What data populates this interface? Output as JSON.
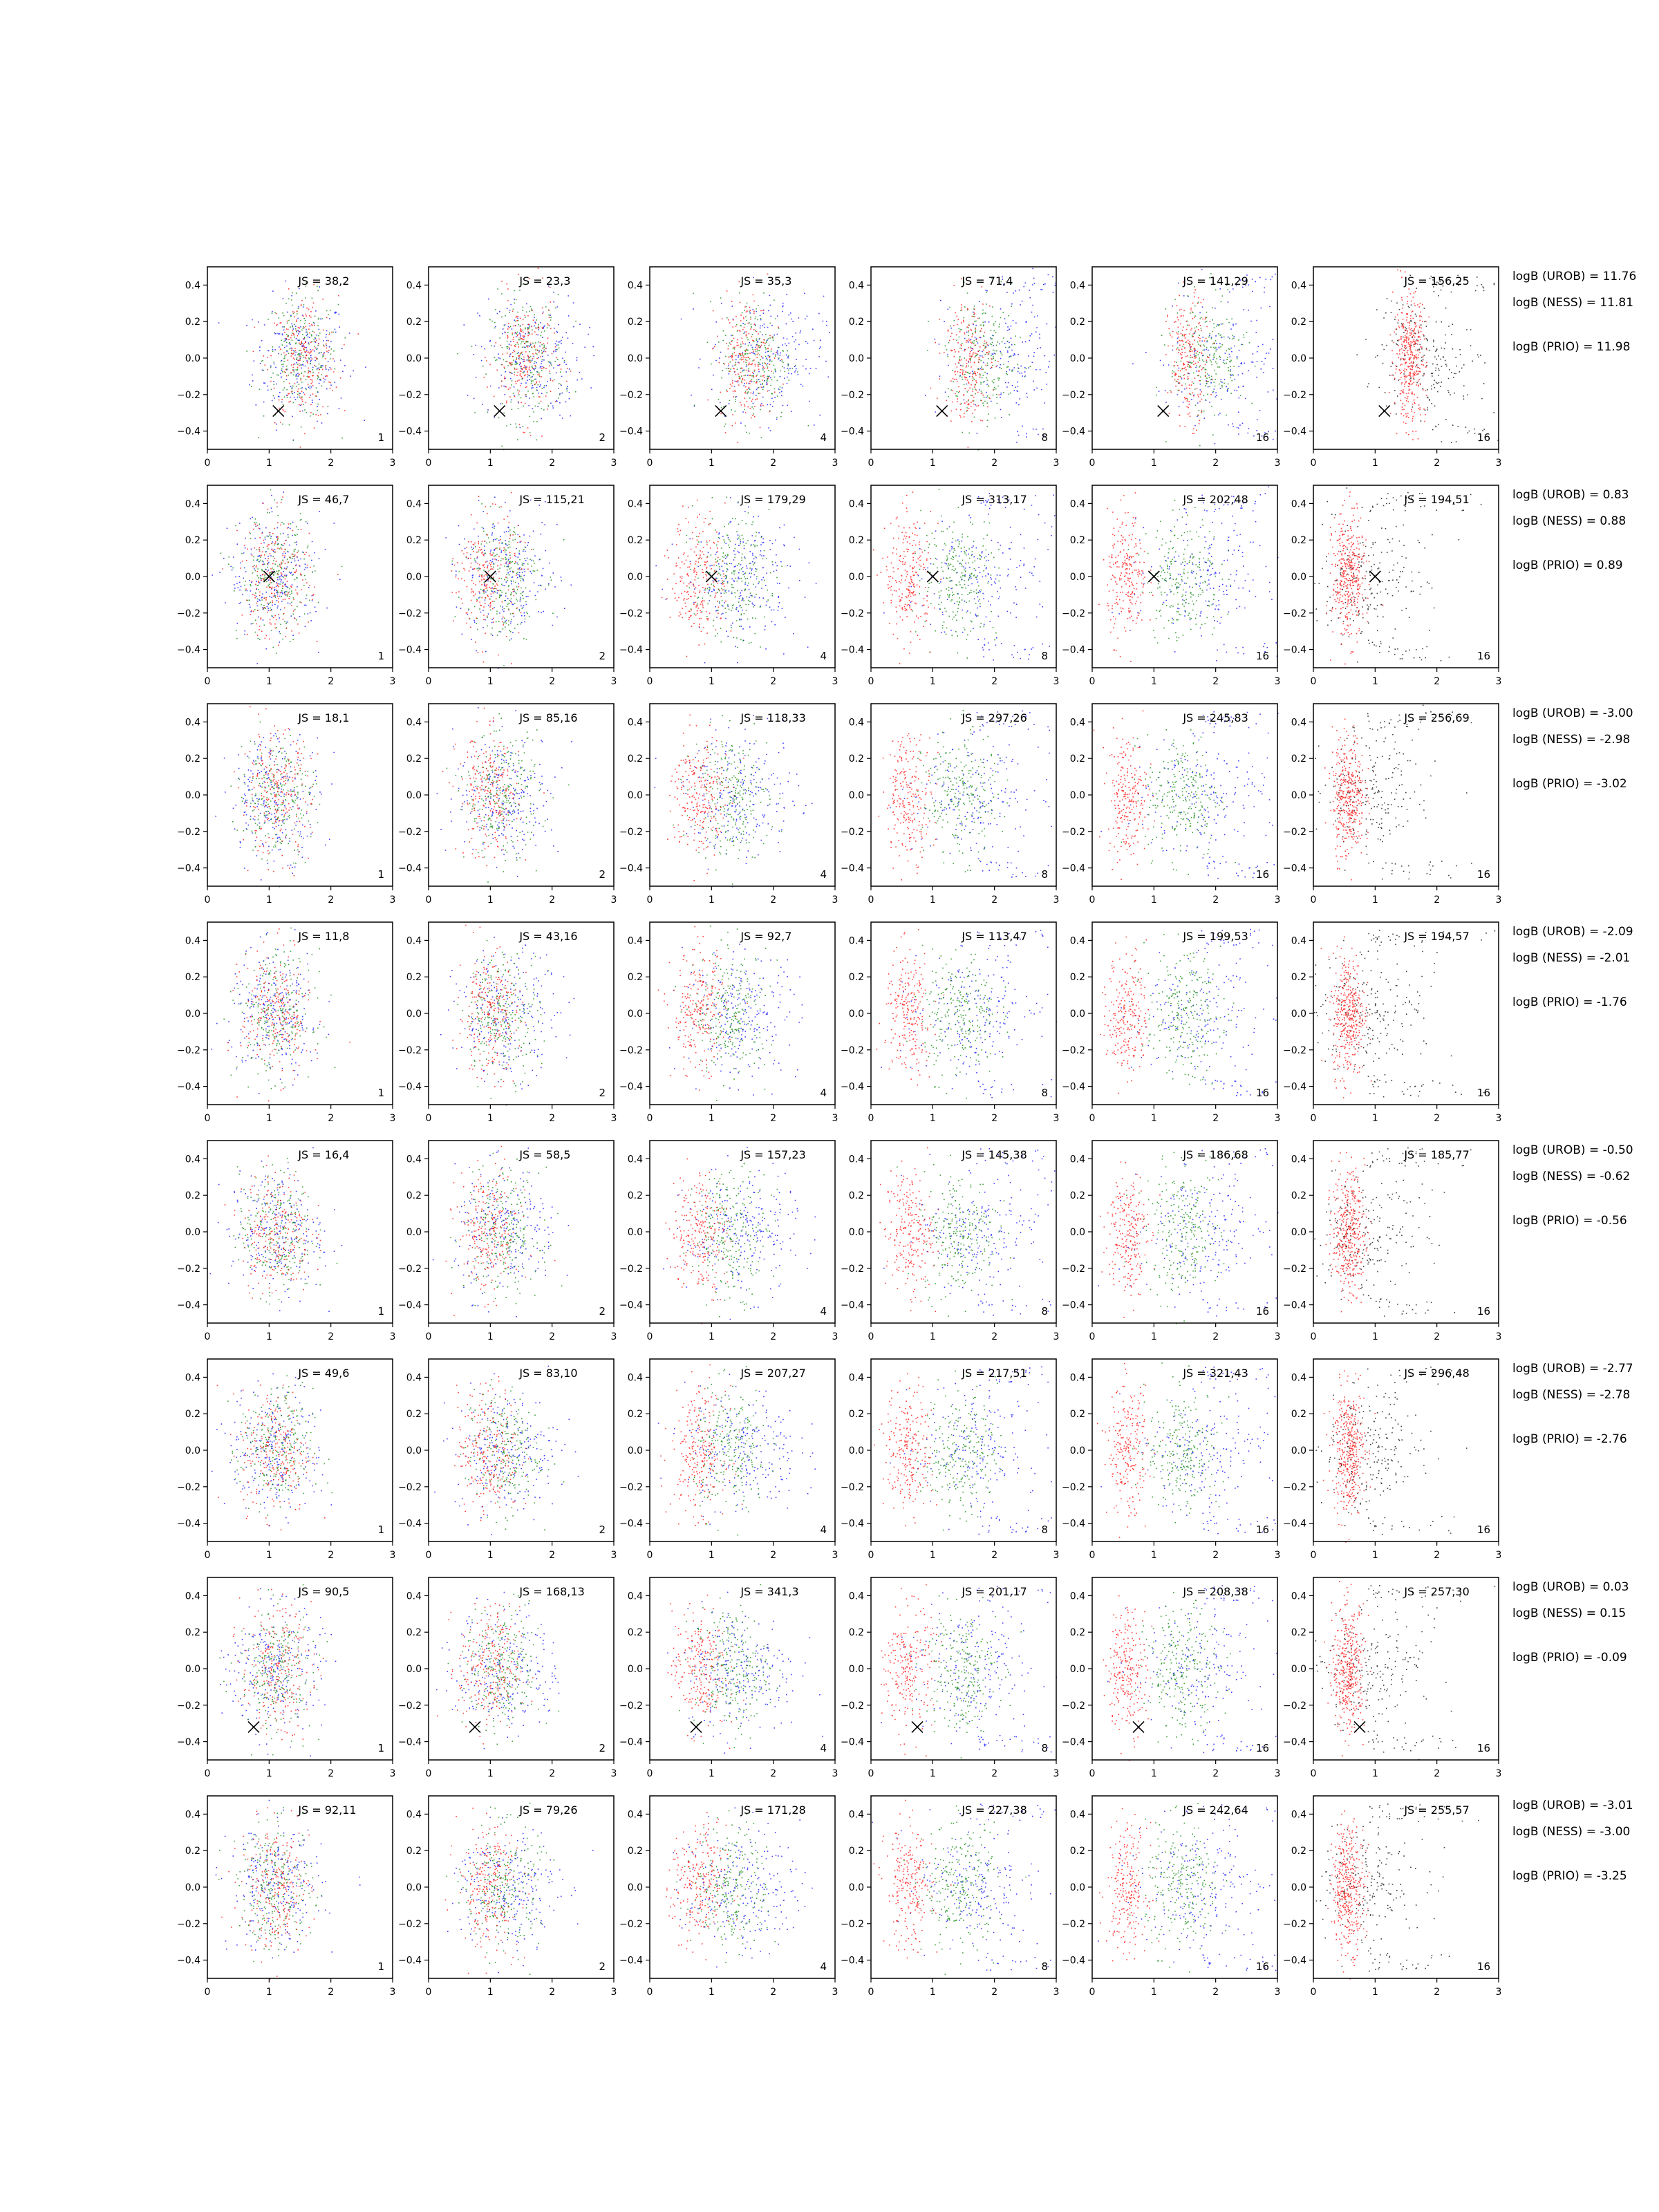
{
  "chart_data": {
    "type": "scatter",
    "x_ticks": [
      "0",
      "1",
      "2",
      "3"
    ],
    "y_ticks": [
      "0.4",
      "0.2",
      "0.0",
      "−0.2",
      "−0.4"
    ],
    "xlim": [
      0,
      3
    ],
    "ylim": [
      -0.5,
      0.5
    ],
    "columns": [
      "1",
      "2",
      "4",
      "8",
      "16",
      "16"
    ],
    "colors": {
      "a": "#0000ff",
      "b": "#008000",
      "c": "#ff0000",
      "d": "#000000"
    },
    "marker": "x",
    "rows": [
      {
        "js": [
          "JS = 38,2",
          "JS = 23,3",
          "JS = 35,3",
          "JS = 71,4",
          "JS = 141,29",
          "JS = 156,25"
        ],
        "logB": [
          "logB (UROB) = 11.76",
          "logB (NESS) = 11.81",
          "logB (PRIO) = 11.98"
        ],
        "truth": [
          1.15,
          -0.29
        ]
      },
      {
        "js": [
          "JS = 46,7",
          "JS = 115,21",
          "JS = 179,29",
          "JS = 313,17",
          "JS = 202,48",
          "JS = 194,51"
        ],
        "logB": [
          "logB (UROB) = 0.83",
          "logB (NESS) = 0.88",
          "logB (PRIO) = 0.89"
        ],
        "truth": [
          1.0,
          0.0
        ]
      },
      {
        "js": [
          "JS = 18,1",
          "JS = 85,16",
          "JS = 118,33",
          "JS = 297,26",
          "JS = 245,83",
          "JS = 256,69"
        ],
        "logB": [
          "logB (UROB) = -3.00",
          "logB (NESS) = -2.98",
          "logB (PRIO) = -3.02"
        ],
        "truth": null
      },
      {
        "js": [
          "JS = 11,8",
          "JS = 43,16",
          "JS = 92,7",
          "JS = 113,47",
          "JS = 199,53",
          "JS = 194,57"
        ],
        "logB": [
          "logB (UROB) = -2.09",
          "logB (NESS) = -2.01",
          "logB (PRIO) = -1.76"
        ],
        "truth": null
      },
      {
        "js": [
          "JS = 16,4",
          "JS = 58,5",
          "JS = 157,23",
          "JS = 145,38",
          "JS = 186,68",
          "JS = 185,77"
        ],
        "logB": [
          "logB (UROB) = -0.50",
          "logB (NESS) = -0.62",
          "logB (PRIO) = -0.56"
        ],
        "truth": null
      },
      {
        "js": [
          "JS = 49,6",
          "JS = 83,10",
          "JS = 207,27",
          "JS = 217,51",
          "JS = 321,43",
          "JS = 296,48"
        ],
        "logB": [
          "logB (UROB) = -2.77",
          "logB (NESS) = -2.78",
          "logB (PRIO) = -2.76"
        ],
        "truth": null
      },
      {
        "js": [
          "JS = 90,5",
          "JS = 168,13",
          "JS = 341,3",
          "JS = 201,17",
          "JS = 208,38",
          "JS = 257,30"
        ],
        "logB": [
          "logB (UROB) = 0.03",
          "logB (NESS) = 0.15",
          "logB (PRIO) = -0.09"
        ],
        "truth": [
          0.75,
          -0.32
        ]
      },
      {
        "js": [
          "JS = 92,11",
          "JS = 79,26",
          "JS = 171,28",
          "JS = 227,38",
          "JS = 242,64",
          "JS = 255,57"
        ],
        "logB": [
          "logB (UROB) = -3.01",
          "logB (NESS) = -3.00",
          "logB (PRIO) = -3.25"
        ],
        "truth": null
      }
    ]
  }
}
